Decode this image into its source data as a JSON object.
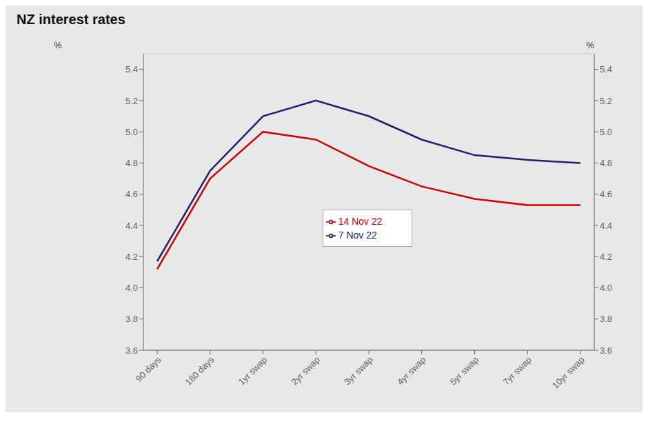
{
  "chart_data": {
    "type": "line",
    "title": "NZ interest rates",
    "categories": [
      "90 days",
      "180 days",
      "1yr swap",
      "2yr swap",
      "3yr swap",
      "4yr swap",
      "5yr swap",
      "7yr swap",
      "10yr swap"
    ],
    "series": [
      {
        "name": "7 Nov 22",
        "color": "#1f1f6e",
        "values": [
          4.17,
          4.75,
          5.1,
          5.2,
          5.1,
          4.95,
          4.85,
          4.82,
          4.8
        ]
      },
      {
        "name": "14 Nov 22",
        "color": "#cc0000",
        "values": [
          4.12,
          4.7,
          5.0,
          4.95,
          4.78,
          4.65,
          4.57,
          4.53,
          4.53
        ]
      }
    ],
    "ylabel": "%",
    "y2label": "%",
    "ylim": [
      3.6,
      5.5
    ],
    "yticks": [
      3.6,
      3.8,
      {
        "value": 4.0,
        "label": "4.0"
      },
      4.2,
      4.4,
      4.6,
      4.8,
      {
        "value": 5.0,
        "label": "5.0"
      },
      5.2,
      5.4
    ],
    "y2lim": [
      3.6,
      5.5
    ],
    "y2ticks": [
      3.6,
      3.8,
      {
        "value": 4.0,
        "label": "4.0"
      },
      4.2,
      4.4,
      4.6,
      4.8,
      {
        "value": 5.0,
        "label": "5.0"
      },
      5.2,
      5.4
    ],
    "grid": true,
    "legend": "center"
  }
}
